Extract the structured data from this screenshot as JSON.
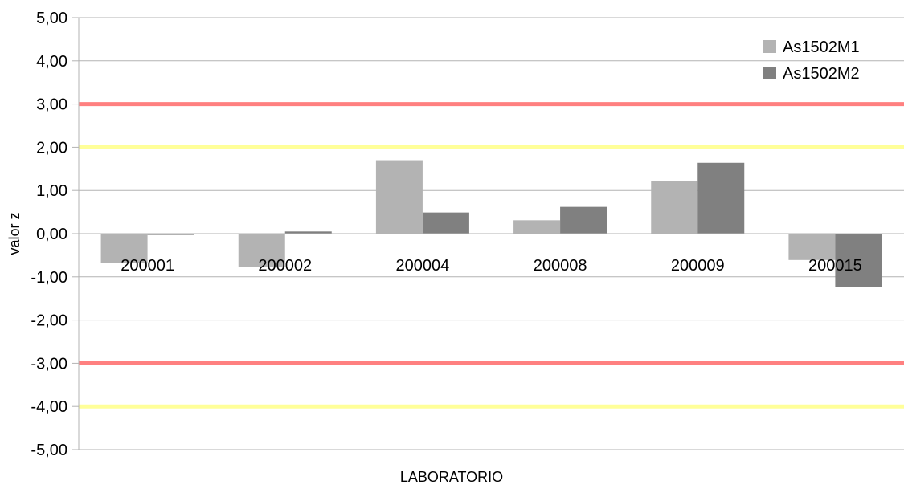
{
  "chart_data": {
    "type": "bar",
    "title": "",
    "xlabel": "LABORATORIO",
    "ylabel": "valor z",
    "ylim": [
      -5,
      5
    ],
    "yticks": [
      5,
      4,
      3,
      2,
      1,
      0,
      -1,
      -2,
      -3,
      -4,
      -5
    ],
    "ytick_labels": [
      "5,00",
      "4,00",
      "3,00",
      "2,00",
      "1,00",
      "0,00",
      "-1,00",
      "-2,00",
      "-3,00",
      "-4,00",
      "-5,00"
    ],
    "categories": [
      "200001",
      "200002",
      "200004",
      "200008",
      "200009",
      "200015"
    ],
    "series": [
      {
        "name": "As1502M1",
        "color": "#b3b3b3",
        "values": [
          -0.67,
          -0.78,
          1.7,
          0.31,
          1.21,
          -0.61
        ]
      },
      {
        "name": "As1502M2",
        "color": "#808080",
        "values": [
          -0.03,
          0.05,
          0.49,
          0.62,
          1.64,
          -1.23
        ]
      }
    ],
    "reference_lines": [
      {
        "y": 3,
        "color": "#ff8080"
      },
      {
        "y": -3,
        "color": "#ff8080"
      },
      {
        "y": 2,
        "color": "#ffff99"
      },
      {
        "y": -4,
        "color": "#ffff99"
      }
    ],
    "grid": true,
    "legend_position": "top-right"
  }
}
